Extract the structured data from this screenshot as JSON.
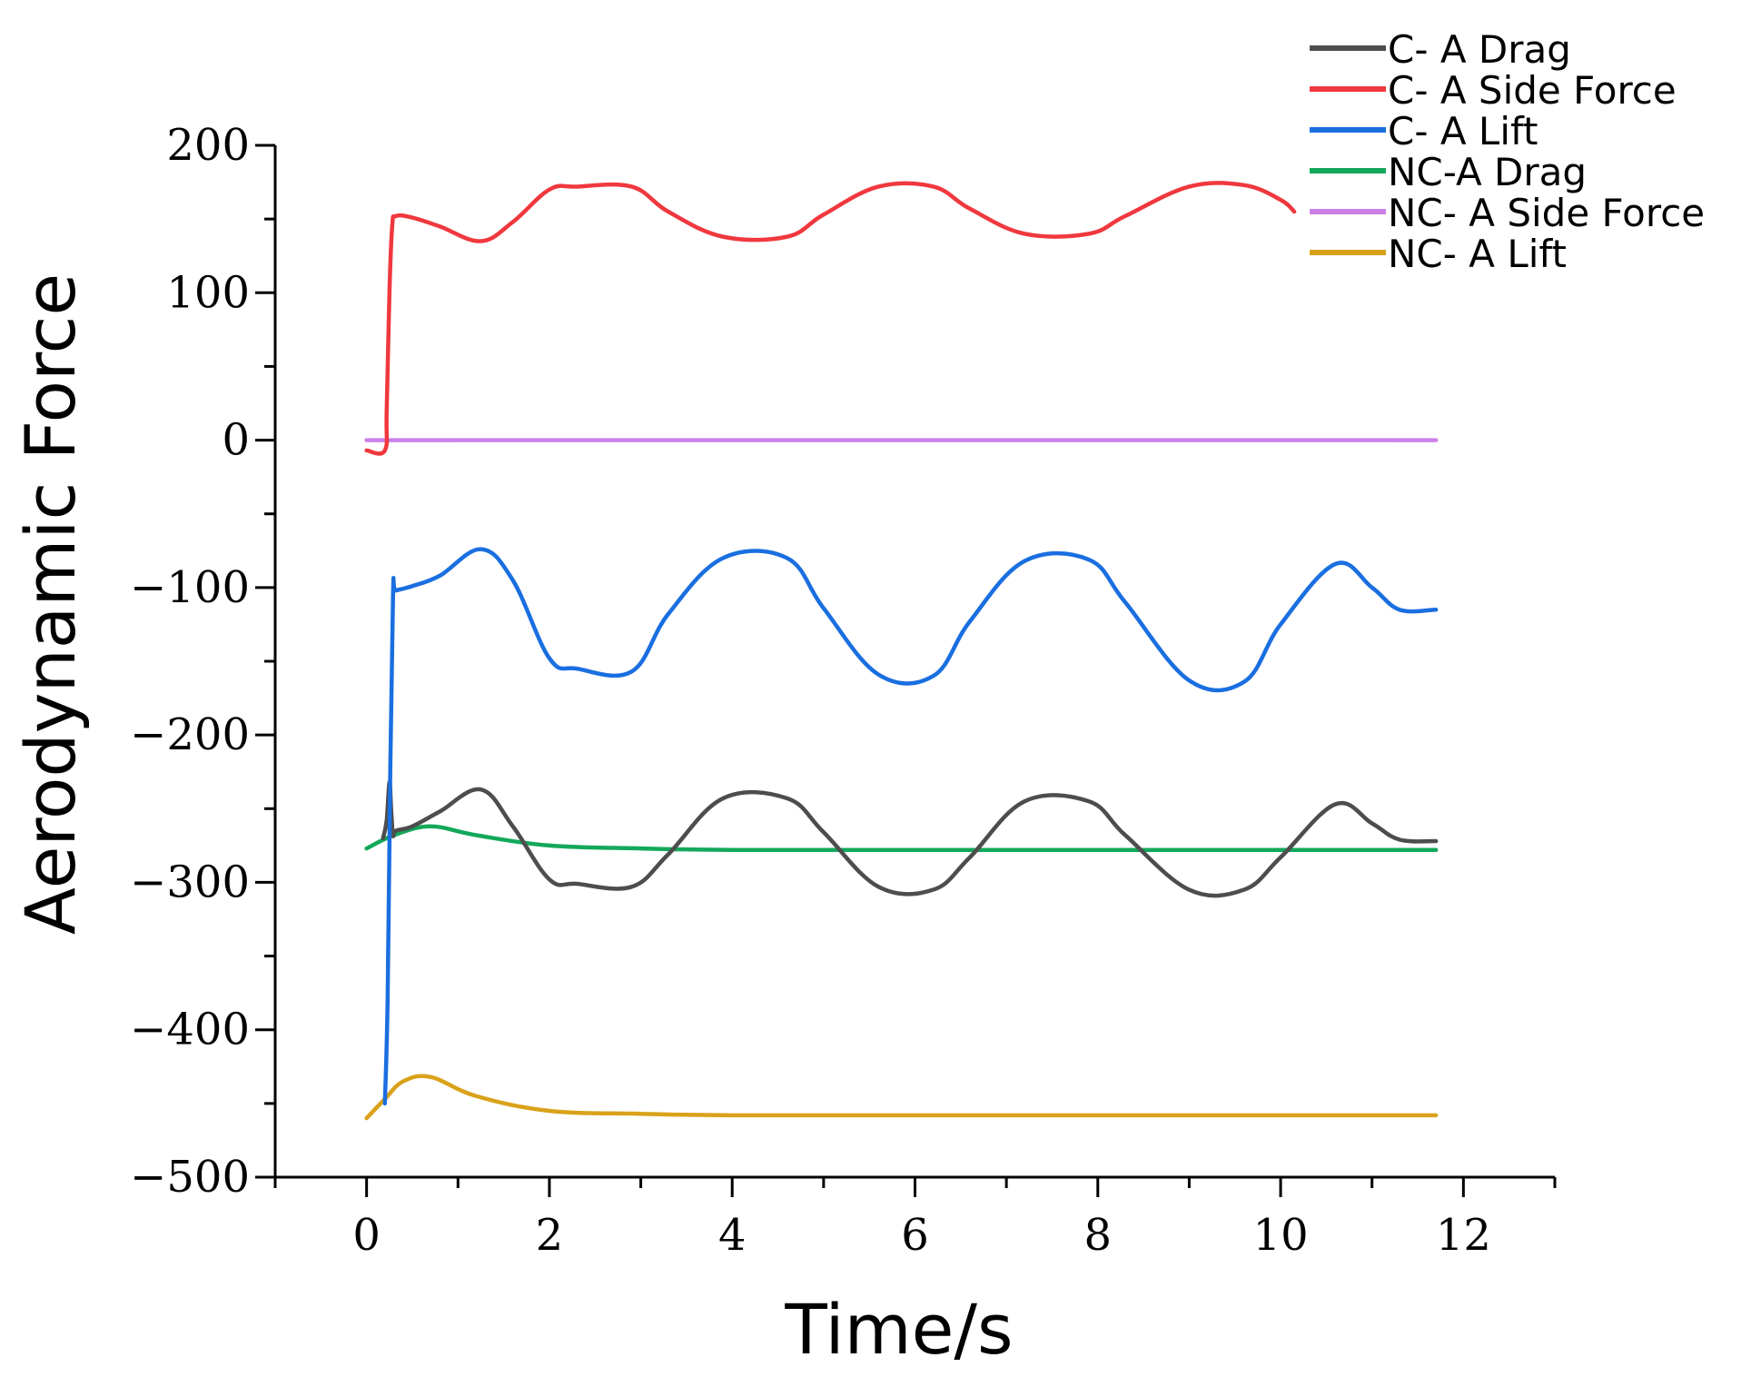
{
  "chart_data": {
    "type": "line",
    "title": "",
    "xlabel": "Time/s",
    "ylabel": "Aerodynamic Force",
    "xlim": [
      -1,
      13
    ],
    "ylim": [
      -500,
      200
    ],
    "x_ticks": [
      0,
      2,
      4,
      6,
      8,
      10,
      12
    ],
    "y_ticks": [
      200,
      100,
      0,
      -100,
      -200,
      -300,
      -400,
      -500
    ],
    "grid": false,
    "legend_position": "top-right",
    "series": [
      {
        "name": "C- A Drag",
        "color": "#4d4d4d",
        "x": [
          0.18,
          0.22,
          0.25,
          0.27,
          0.29,
          0.32,
          0.5,
          0.8,
          1.25,
          1.6,
          2.0,
          2.3,
          2.9,
          3.3,
          3.9,
          4.6,
          5.0,
          5.6,
          6.2,
          6.6,
          7.2,
          7.9,
          8.3,
          9.0,
          9.6,
          10.0,
          10.6,
          11.0,
          11.3,
          11.7
        ],
        "y": [
          -270,
          -258,
          -232,
          -252,
          -268,
          -265,
          -262,
          -252,
          -237,
          -262,
          -298,
          -301,
          -303,
          -281,
          -243,
          -243,
          -266,
          -303,
          -305,
          -283,
          -245,
          -245,
          -268,
          -305,
          -305,
          -283,
          -247,
          -260,
          -271,
          -272
        ]
      },
      {
        "name": "C- A Side Force",
        "color": "#f0383e",
        "x": [
          0.0,
          0.2,
          0.22,
          0.25,
          0.28,
          0.32,
          0.5,
          0.8,
          1.25,
          1.6,
          2.0,
          2.3,
          2.9,
          3.3,
          3.9,
          4.6,
          5.0,
          5.6,
          6.2,
          6.6,
          7.2,
          7.9,
          8.3,
          9.0,
          9.6,
          10.0,
          10.15
        ],
        "y": [
          -7,
          -7,
          20,
          100,
          145,
          152,
          151,
          145,
          135,
          148,
          170,
          172,
          172,
          155,
          138,
          138,
          153,
          172,
          172,
          157,
          140,
          140,
          152,
          172,
          173,
          163,
          155
        ]
      },
      {
        "name": "C- A Lift",
        "color": "#1a6fe0",
        "x": [
          0.2,
          0.23,
          0.26,
          0.29,
          0.32,
          0.5,
          0.8,
          1.25,
          1.6,
          2.0,
          2.3,
          2.9,
          3.3,
          3.9,
          4.6,
          5.0,
          5.6,
          6.2,
          6.6,
          7.2,
          7.9,
          8.3,
          9.0,
          9.6,
          10.0,
          10.6,
          11.0,
          11.3,
          11.7
        ],
        "y": [
          -450,
          -380,
          -220,
          -103,
          -102,
          -99,
          -92,
          -74,
          -95,
          -148,
          -155,
          -157,
          -118,
          -80,
          -80,
          -114,
          -159,
          -160,
          -123,
          -82,
          -81,
          -110,
          -163,
          -164,
          -125,
          -84,
          -100,
          -115,
          -115
        ]
      },
      {
        "name": "NC-A Drag",
        "color": "#13a85a",
        "x": [
          0.0,
          0.3,
          0.7,
          1.2,
          2.0,
          3.0,
          4.0,
          6.0,
          8.0,
          10.0,
          11.7
        ],
        "y": [
          -277,
          -268,
          -262,
          -268,
          -275,
          -277,
          -278,
          -278,
          -278,
          -278,
          -278
        ]
      },
      {
        "name": "NC- A Side Force",
        "color": "#cc80e8",
        "x": [
          0.0,
          11.7
        ],
        "y": [
          0,
          0
        ]
      },
      {
        "name": "NC- A Lift",
        "color": "#d9a21a",
        "x": [
          0.0,
          0.2,
          0.4,
          0.7,
          1.2,
          2.0,
          3.0,
          4.0,
          6.0,
          8.0,
          10.0,
          11.7
        ],
        "y": [
          -460,
          -447,
          -435,
          -432,
          -445,
          -455,
          -457,
          -458,
          -458,
          -458,
          -458,
          -458
        ]
      }
    ]
  }
}
